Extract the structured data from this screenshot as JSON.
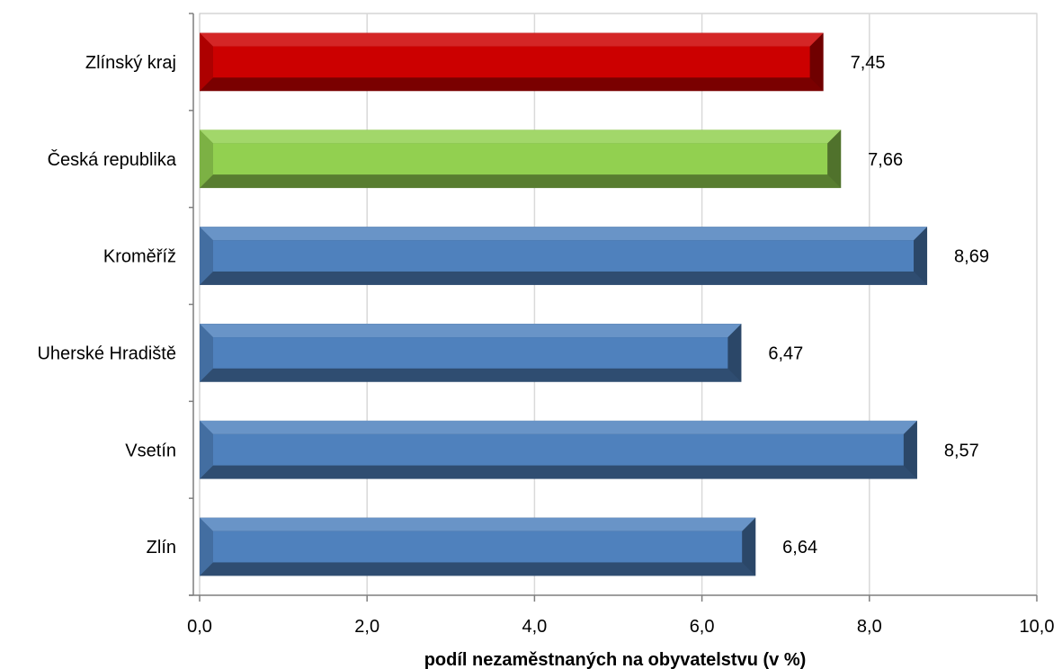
{
  "chart_data": {
    "type": "bar",
    "orientation": "horizontal",
    "categories": [
      "Zlínský kraj",
      "Česká republika",
      "Kroměříž",
      "Uherské Hradiště",
      "Vsetín",
      "Zlín"
    ],
    "values": [
      7.45,
      7.66,
      8.69,
      6.47,
      8.57,
      6.64
    ],
    "value_labels": [
      "7,45",
      "7,66",
      "8,69",
      "6,47",
      "8,57",
      "6,64"
    ],
    "bar_colors": [
      "#CC0000",
      "#92D050",
      "#4F81BD",
      "#4F81BD",
      "#4F81BD",
      "#4F81BD"
    ],
    "xlabel": "podíl nezaměstnaných na obyvatelstvu (v %)",
    "ylabel": "",
    "xlim": [
      0,
      10
    ],
    "xticks": [
      0,
      2,
      4,
      6,
      8,
      10
    ],
    "xtick_labels": [
      "0,0",
      "2,0",
      "4,0",
      "6,0",
      "8,0",
      "10,0"
    ],
    "grid": "vertical",
    "legend": "none"
  }
}
